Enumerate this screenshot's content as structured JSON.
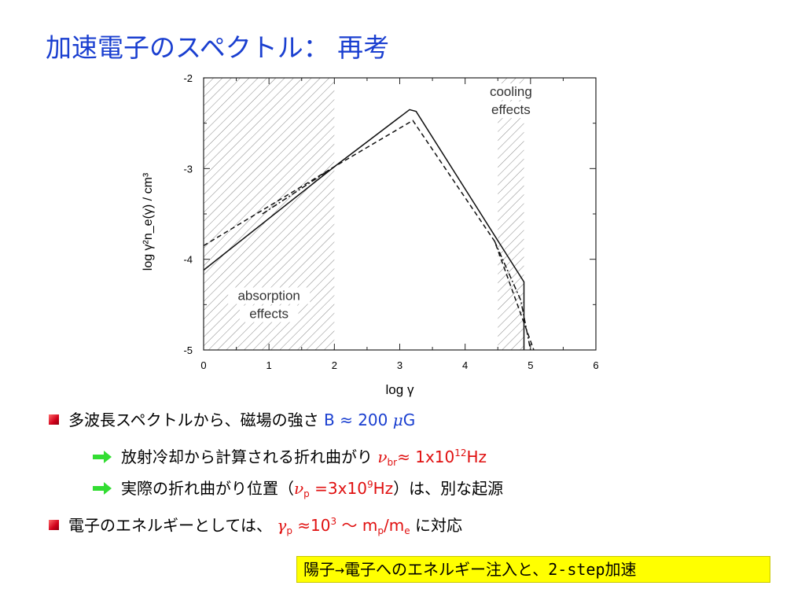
{
  "title": "加速電子のスペクトル： 再考",
  "chart_data": {
    "type": "line",
    "xlabel": "log γ",
    "ylabel": "log γ²n_e(γ) / cm³",
    "xlim": [
      0,
      6
    ],
    "ylim": [
      -5,
      -2
    ],
    "xticks": [
      "0",
      "1",
      "2",
      "3",
      "4",
      "5",
      "6"
    ],
    "yticks": [
      "-2",
      "-3",
      "-4",
      "-5"
    ],
    "shaded_regions": [
      {
        "x": [
          0,
          2
        ],
        "label_lines": [
          "absorption",
          "effects"
        ]
      },
      {
        "x": [
          4.5,
          4.9
        ],
        "label_lines": [
          "cooling",
          "effects"
        ]
      }
    ],
    "series": [
      {
        "style": "solid",
        "x": [
          0,
          2,
          3.15,
          3.25,
          4.9,
          4.9
        ],
        "y": [
          -4.12,
          -2.98,
          -2.35,
          -2.37,
          -4.25,
          -5.0
        ]
      },
      {
        "style": "dashed",
        "x": [
          0,
          2,
          3.2,
          4.45,
          4.9,
          5.05
        ],
        "y": [
          -3.85,
          -2.98,
          -2.47,
          -3.8,
          -4.7,
          -5.0
        ]
      },
      {
        "style": "dashdot",
        "x": [
          0.9,
          2
        ],
        "y": [
          -3.5,
          -2.98
        ]
      },
      {
        "style": "dashdot",
        "x": [
          4.45,
          4.85,
          5.0
        ],
        "y": [
          -3.8,
          -4.45,
          -5.0
        ]
      }
    ]
  },
  "bullets": {
    "b1": {
      "text": "多波長スペクトルから、磁場の強さ",
      "var": "B",
      "approx": "≈",
      "value": "200",
      "mu": "μ",
      "unit": "G"
    },
    "b2": {
      "text": "放射冷却から計算される折れ曲がり",
      "nu": "ν",
      "sub": "br",
      "approx": "≈",
      "mant": "1x10",
      "exp": "12",
      "unit": "Hz"
    },
    "b3": {
      "text_before": "実際の折れ曲がり位置（",
      "nu": "ν",
      "sub": "p",
      "eq": "=3x10",
      "exp": "9",
      "unit": "Hz",
      "text_after": "）は、別な起源"
    },
    "b4": {
      "text": "電子のエネルギーとしては、",
      "gamma": "γ",
      "sub": "p",
      "approx": "≈10",
      "exp": "3",
      "tilde": "〜",
      "m1": "m",
      "m1sub": "p",
      "slash": "/m",
      "m2sub": "e",
      "text_after": "に対応"
    }
  },
  "highlight": "陽子→電子へのエネルギー注入と、2-step加速",
  "colors": {
    "title": "#1a3fd0",
    "red": "#e01010",
    "highlight": "#ffff00",
    "arrow": "#33dd33"
  }
}
